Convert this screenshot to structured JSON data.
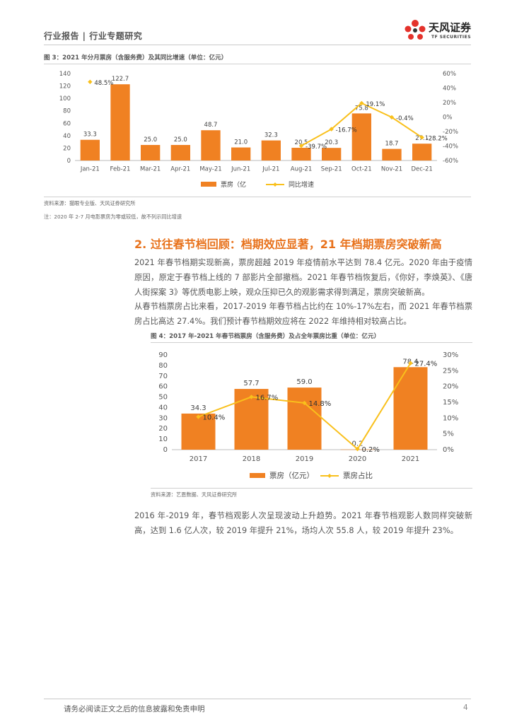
{
  "header": {
    "category": "行业报告 | 行业专题研究",
    "logo_cn": "天风证券",
    "logo_en": "TF SECURITIES"
  },
  "figure3": {
    "title": "图 3：2021 年分月票房（含服务费）及其同比增速（单位：亿元）",
    "source": "资料来源：猫眼专业版、天风证券研究所",
    "note": "注：2020 年 2-7 月电影票房为零或较低，故不列示同比增速",
    "chart_data": {
      "type": "bar",
      "categories": [
        "Jan-21",
        "Feb-21",
        "Mar-21",
        "Apr-21",
        "May-21",
        "Jun-21",
        "Jul-21",
        "Aug-21",
        "Sep-21",
        "Oct-21",
        "Nov-21",
        "Dec-21"
      ],
      "series": [
        {
          "name": "票房（亿",
          "type": "bar",
          "axis": "left",
          "values": [
            33.3,
            122.7,
            25.0,
            25.0,
            48.7,
            21.0,
            32.3,
            20.5,
            20.3,
            75.8,
            18.7,
            27.1
          ],
          "labels": [
            "33.3",
            "122.7",
            "25.0",
            "25.0",
            "48.7",
            "21.0",
            "32.3",
            "20.5",
            "20.3",
            "75.8",
            "18.7",
            "27.1"
          ]
        },
        {
          "name": "同比增速",
          "type": "line",
          "axis": "right",
          "values": [
            48.5,
            null,
            null,
            null,
            null,
            null,
            null,
            -39.7,
            -16.7,
            19.1,
            -0.4,
            -28.2
          ],
          "labels": [
            "48.5%",
            "",
            "",
            "",
            "",
            "",
            "",
            "-39.7%",
            "-16.7%",
            "19.1%",
            "-0.4%",
            "-28.2%"
          ]
        }
      ],
      "y_left": {
        "min": 0,
        "max": 140,
        "ticks": [
          "0",
          "20",
          "40",
          "60",
          "80",
          "100",
          "120",
          "140"
        ]
      },
      "y_right": {
        "min": -60,
        "max": 60,
        "ticks": [
          "-60%",
          "-40%",
          "-20%",
          "0%",
          "20%",
          "40%",
          "60%"
        ]
      },
      "legend_position": "bottom",
      "colors": {
        "bar": "#f08122",
        "line": "#f9c01c"
      }
    }
  },
  "section": {
    "title": "2. 过往春节档回顾：档期效应显著，21 年档期票房突破新高",
    "para1": "2021 年春节档期实现新高，票房超越 2019 年疫情前水平达到 78.4 亿元。2020 年由于疫情原因，原定于春节档上线的 7 部影片全部撤档。2021 年春节档恢复后，《你好，李焕英》、《唐人街探案 3》等优质电影上映，观众压抑已久的观影需求得到满足，票房突破新高。",
    "para2": "从春节档票房占比来看，2017-2019 年春节档占比约在 10%-17%左右，而 2021 年春节档票房占比高达 27.4%。我们预计春节档期效应将在 2022 年维持相对较高占比。",
    "para3": "2016 年-2019 年，春节档观影人次呈现波动上升趋势。2021 年春节档观影人数同样突破新高，达到 1.6 亿人次，较 2019 年提升 21%，场均人次 55.8 人，较 2019 年提升 23%。"
  },
  "figure4": {
    "title": "图 4：2017 年-2021 年春节档票房（含服务费）及占全年票房比重（单位：亿元）",
    "source": "资料来源：艺恩数据、天风证券研究所",
    "chart_data": {
      "type": "bar",
      "categories": [
        "2017",
        "2018",
        "2019",
        "2020",
        "2021"
      ],
      "series": [
        {
          "name": "票房（亿元）",
          "type": "bar",
          "axis": "left",
          "values": [
            34.3,
            57.7,
            59.0,
            0.2,
            78.4
          ],
          "labels": [
            "34.3",
            "57.7",
            "59.0",
            "0.2",
            "78.4"
          ]
        },
        {
          "name": "票房占比",
          "type": "line",
          "axis": "right",
          "values": [
            10.4,
            16.7,
            14.8,
            0.2,
            27.4
          ],
          "labels": [
            "10.4%",
            "16.7%",
            "14.8%",
            "0.2%",
            "27.4%"
          ]
        }
      ],
      "y_left": {
        "min": 0,
        "max": 90,
        "ticks": [
          "0",
          "10",
          "20",
          "30",
          "40",
          "50",
          "60",
          "70",
          "80",
          "90"
        ]
      },
      "y_right": {
        "min": 0,
        "max": 30,
        "ticks": [
          "0%",
          "5%",
          "10%",
          "15%",
          "20%",
          "25%",
          "30%"
        ]
      },
      "legend_position": "bottom",
      "colors": {
        "bar": "#f08122",
        "line": "#f9c01c"
      }
    }
  },
  "footer": {
    "disclaimer": "请务必阅读正文之后的信息披露和免责申明",
    "page": "4"
  }
}
